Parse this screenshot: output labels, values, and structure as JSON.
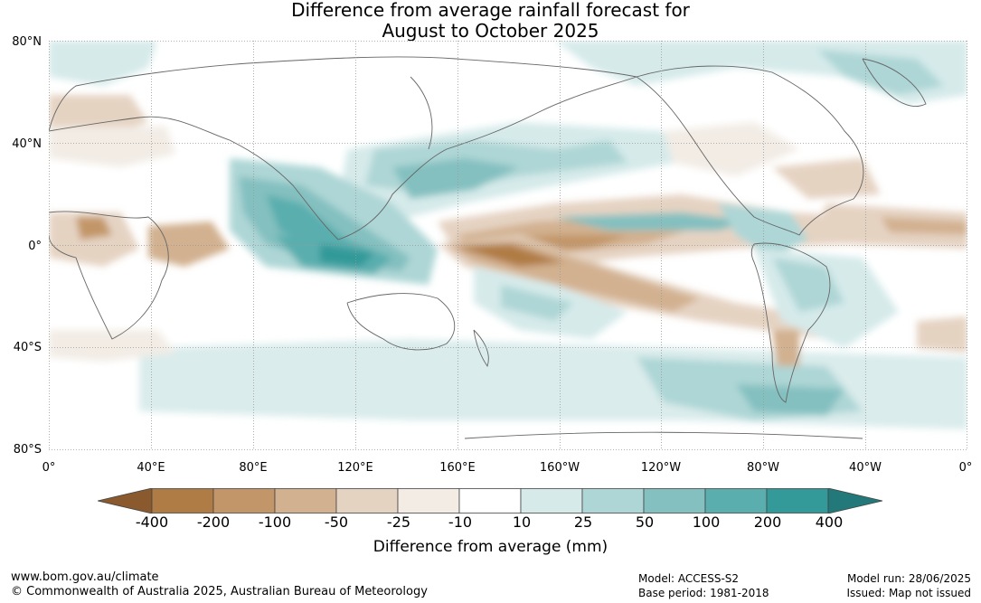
{
  "title": {
    "line1": "Difference from average rainfall forecast for",
    "line2": "August to October 2025"
  },
  "axes": {
    "lat_labels": [
      "80°N",
      "40°N",
      "0°",
      "40°S",
      "80°S"
    ],
    "lon_labels": [
      "0°",
      "40°E",
      "80°E",
      "120°E",
      "160°E",
      "160°W",
      "120°W",
      "80°W",
      "40°W",
      "0°"
    ]
  },
  "colorbar": {
    "tick_labels": [
      "-400",
      "-200",
      "-100",
      "-50",
      "-25",
      "-10",
      "10",
      "25",
      "50",
      "100",
      "200",
      "400"
    ],
    "colors": [
      "#8a5a2e",
      "#b07c45",
      "#c29668",
      "#d2b190",
      "#e5d3c2",
      "#f2ece5",
      "#ffffff",
      "#d6eaea",
      "#aed6d6",
      "#84c0c0",
      "#5aaeae",
      "#339999",
      "#237979"
    ],
    "label": "Difference from average (mm)"
  },
  "footer": {
    "website": "www.bom.gov.au/climate",
    "copyright": "© Commonwealth of Australia 2025, Australian Bureau of Meteorology",
    "model": "Model: ACCESS-S2",
    "base_period": "Base period: 1981-2018",
    "model_run": "Model run: 28/06/2025",
    "issued": "Issued: Map not issued"
  }
}
